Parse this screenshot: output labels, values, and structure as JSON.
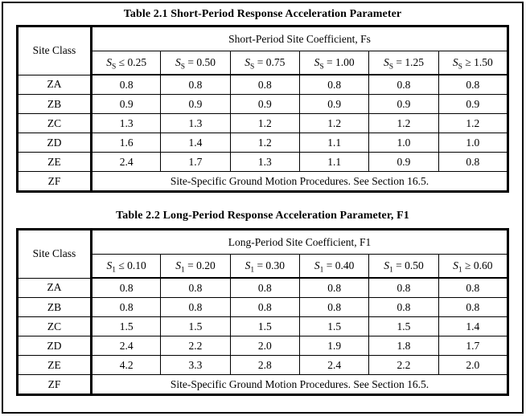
{
  "colors": {
    "text": "#000000",
    "border": "#000000",
    "background": "#ffffff"
  },
  "tables": [
    {
      "title": "Table 2.1  Short-Period Response Acceleration Parameter",
      "corner_header": "Site Class",
      "group_header": "Short-Period Site Coefficient, Fs",
      "columns": [
        {
          "base": "S",
          "sub": "S",
          "cond": "≤ 0.25"
        },
        {
          "base": "S",
          "sub": "S",
          "cond": "= 0.50"
        },
        {
          "base": "S",
          "sub": "S",
          "cond": "= 0.75"
        },
        {
          "base": "S",
          "sub": "S",
          "cond": "= 1.00"
        },
        {
          "base": "S",
          "sub": "S",
          "cond": "= 1.25"
        },
        {
          "base": "S",
          "sub": "S",
          "cond": "≥ 1.50"
        }
      ],
      "rows": [
        {
          "label": "ZA",
          "values": [
            "0.8",
            "0.8",
            "0.8",
            "0.8",
            "0.8",
            "0.8"
          ]
        },
        {
          "label": "ZB",
          "values": [
            "0.9",
            "0.9",
            "0.9",
            "0.9",
            "0.9",
            "0.9"
          ]
        },
        {
          "label": "ZC",
          "values": [
            "1.3",
            "1.3",
            "1.2",
            "1.2",
            "1.2",
            "1.2"
          ]
        },
        {
          "label": "ZD",
          "values": [
            "1.6",
            "1.4",
            "1.2",
            "1.1",
            "1.0",
            "1.0"
          ]
        },
        {
          "label": "ZE",
          "values": [
            "2.4",
            "1.7",
            "1.3",
            "1.1",
            "0.9",
            "0.8"
          ]
        }
      ],
      "special_row": {
        "label": "ZF",
        "text": "Site-Specific Ground Motion Procedures. See Section 16.5."
      }
    },
    {
      "title": "Table 2.2 Long-Period Response Acceleration Parameter, F1",
      "corner_header": "Site Class",
      "group_header": "Long-Period Site Coefficient, F1",
      "columns": [
        {
          "base": "S",
          "sub": "1",
          "cond": "≤ 0.10"
        },
        {
          "base": "S",
          "sub": "1",
          "cond": "= 0.20"
        },
        {
          "base": "S",
          "sub": "1",
          "cond": "= 0.30"
        },
        {
          "base": "S",
          "sub": "1",
          "cond": "= 0.40"
        },
        {
          "base": "S",
          "sub": "1",
          "cond": "= 0.50"
        },
        {
          "base": "S",
          "sub": "1",
          "cond": "≥ 0.60"
        }
      ],
      "rows": [
        {
          "label": "ZA",
          "values": [
            "0.8",
            "0.8",
            "0.8",
            "0.8",
            "0.8",
            "0.8"
          ]
        },
        {
          "label": "ZB",
          "values": [
            "0.8",
            "0.8",
            "0.8",
            "0.8",
            "0.8",
            "0.8"
          ]
        },
        {
          "label": "ZC",
          "values": [
            "1.5",
            "1.5",
            "1.5",
            "1.5",
            "1.5",
            "1.4"
          ]
        },
        {
          "label": "ZD",
          "values": [
            "2.4",
            "2.2",
            "2.0",
            "1.9",
            "1.8",
            "1.7"
          ]
        },
        {
          "label": "ZE",
          "values": [
            "4.2",
            "3.3",
            "2.8",
            "2.4",
            "2.2",
            "2.0"
          ]
        }
      ],
      "special_row": {
        "label": "ZF",
        "text": "Site-Specific Ground Motion Procedures. See Section 16.5."
      }
    }
  ]
}
